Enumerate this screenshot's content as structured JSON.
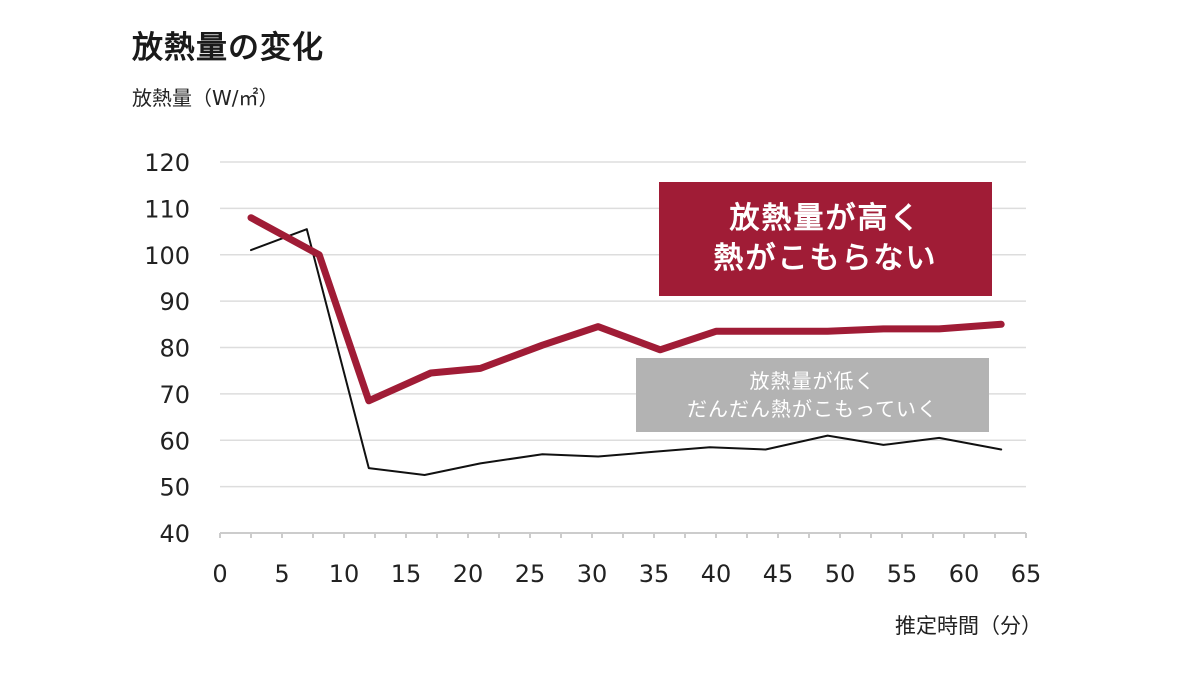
{
  "title": "放熱量の変化",
  "y_axis_label": "放熱量（W/㎡）",
  "x_axis_label": "推定時間（分）",
  "callouts": {
    "high": [
      "放熱量が高く",
      "熱がこもらない"
    ],
    "low": [
      "放熱量が低く",
      "だんだん熱がこもっていく"
    ]
  },
  "colors": {
    "high_series": "#a01c36",
    "low_series": "#111111",
    "gridline": "#dddddd",
    "low_callout_bg": "#b3b3b3"
  },
  "chart_data": {
    "type": "line",
    "xlabel": "推定時間（分）",
    "ylabel": "放熱量（W/㎡）",
    "xlim": [
      0,
      65
    ],
    "ylim": [
      40,
      120
    ],
    "xticks": [
      0,
      5,
      10,
      15,
      20,
      25,
      30,
      35,
      40,
      45,
      50,
      55,
      60,
      65
    ],
    "yticks": [
      40,
      50,
      60,
      70,
      80,
      90,
      100,
      110,
      120
    ],
    "grid": true,
    "series": [
      {
        "x": [
          2.5,
          8,
          12,
          17,
          21,
          26,
          30.5,
          35.5,
          40,
          44.5,
          49,
          53.5,
          58,
          63
        ],
        "y": [
          108,
          100,
          68.5,
          74.5,
          75.5,
          80.5,
          84.5,
          79.5,
          83.5,
          83.5,
          83.5,
          84,
          84,
          85
        ]
      },
      {
        "x": [
          2.5,
          7,
          12,
          16.5,
          21,
          26,
          30.5,
          35,
          39.5,
          44,
          49,
          53.5,
          58,
          63
        ],
        "y": [
          101,
          105.5,
          54,
          52.5,
          55,
          57,
          56.5,
          57.5,
          58.5,
          58,
          61,
          59,
          60.5,
          58
        ]
      }
    ]
  }
}
